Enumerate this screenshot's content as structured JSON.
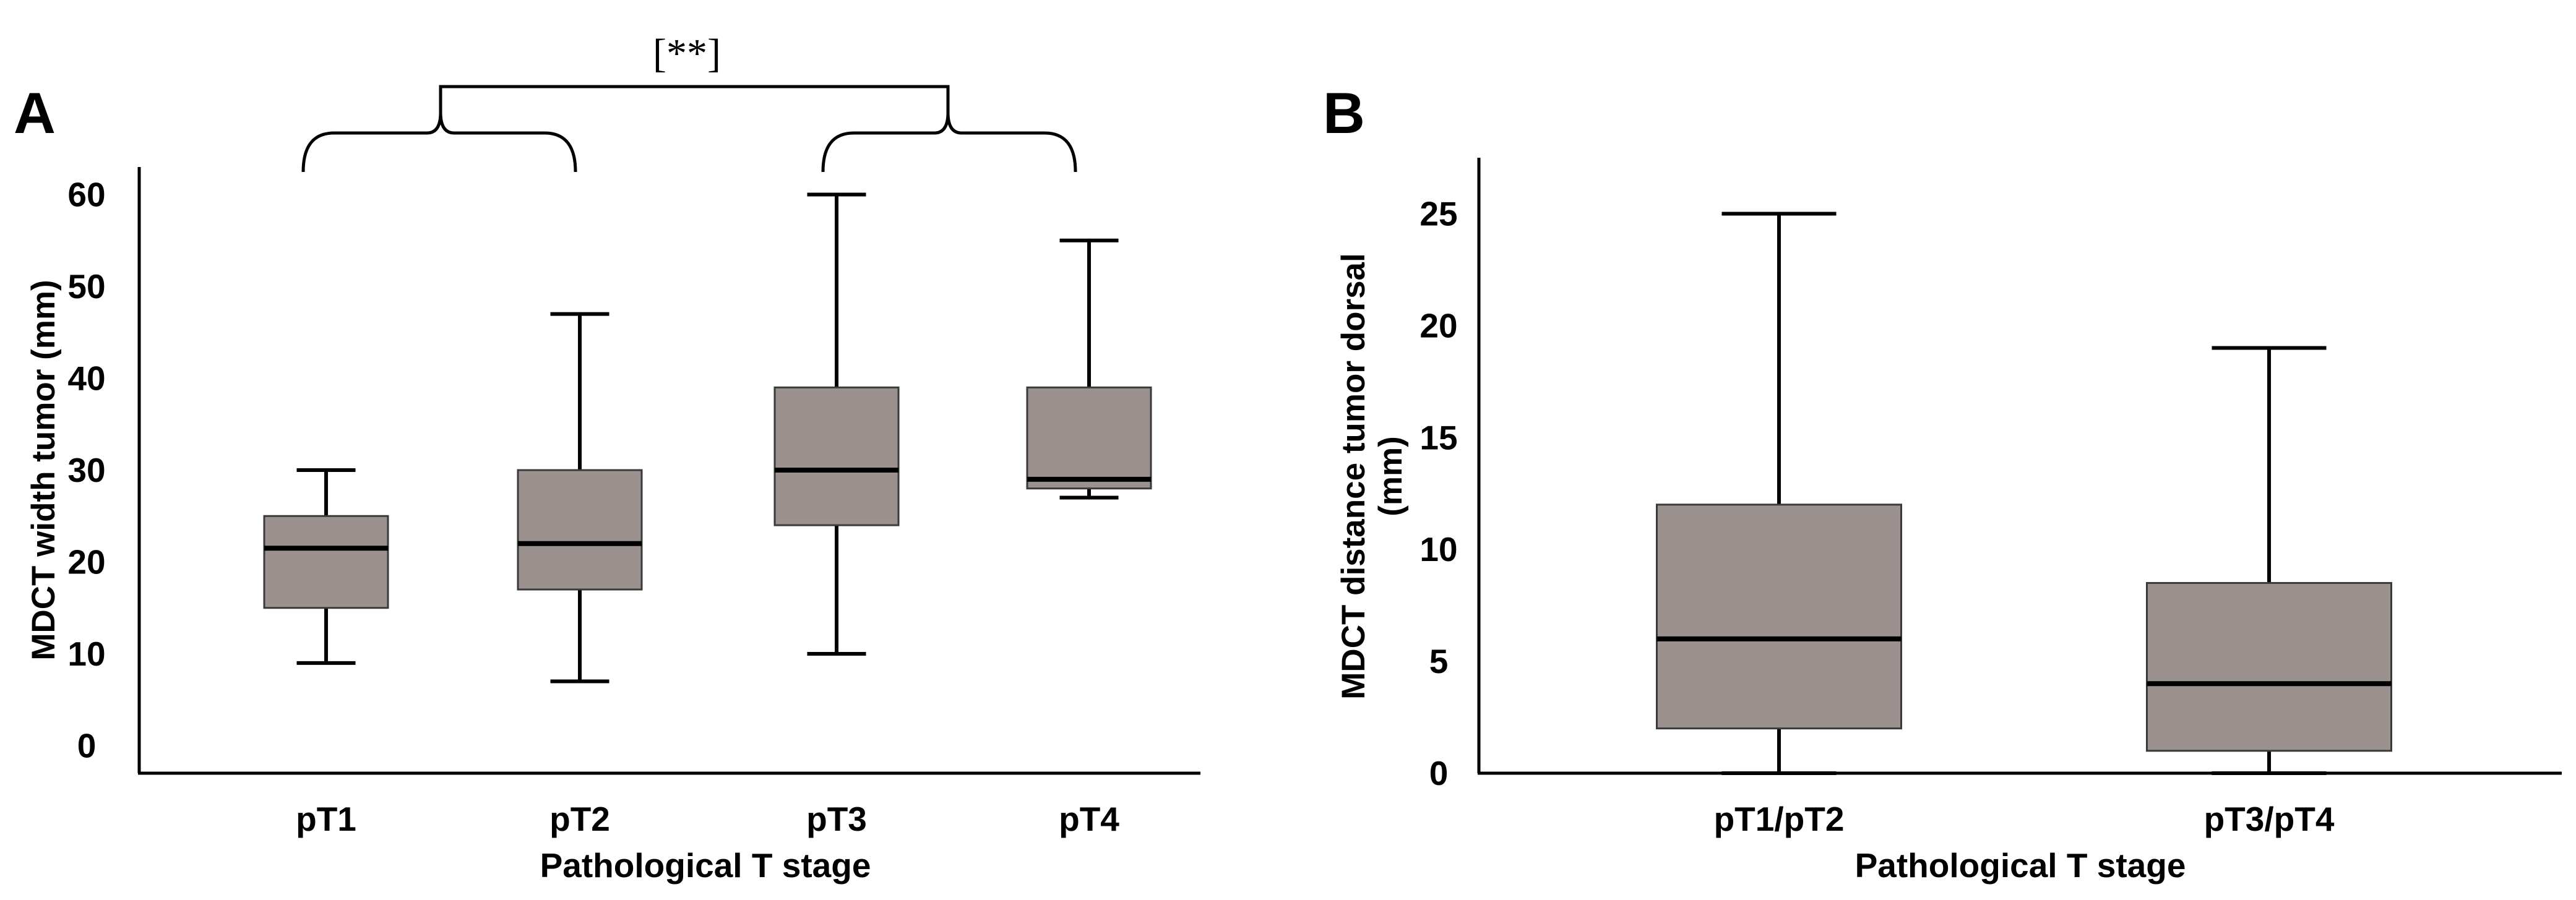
{
  "chart_data": [
    {
      "panel": "A",
      "type": "box",
      "xlabel": "Pathological T stage",
      "ylabel": "MDCT width tumor (mm)",
      "categories": [
        "pT1",
        "pT2",
        "pT3",
        "pT4"
      ],
      "yticks": [
        0,
        10,
        20,
        30,
        40,
        50,
        60
      ],
      "ylim": [
        -3,
        63
      ],
      "boxes": [
        {
          "min": 9,
          "q1": 15,
          "median": 21.5,
          "q3": 25,
          "max": 30
        },
        {
          "min": 7,
          "q1": 17,
          "median": 22,
          "q3": 30,
          "max": 47
        },
        {
          "min": 10,
          "q1": 24,
          "median": 30,
          "q3": 39,
          "max": 60
        },
        {
          "min": 27,
          "q1": 28,
          "median": 29,
          "q3": 39,
          "max": 55
        }
      ],
      "annotation": "[**]"
    },
    {
      "panel": "B",
      "type": "box",
      "xlabel": "Pathological T stage",
      "ylabel": [
        "MDCT distance tumor dorsal",
        "(mm)"
      ],
      "categories": [
        "pT1/pT2",
        "pT3/pT4"
      ],
      "yticks": [
        0,
        5,
        10,
        15,
        20,
        25
      ],
      "ylim": [
        0,
        27.5
      ],
      "boxes": [
        {
          "min": 0,
          "q1": 2,
          "median": 6,
          "q3": 12,
          "max": 25
        },
        {
          "min": 0,
          "q1": 1,
          "median": 4,
          "q3": 8.5,
          "max": 19
        }
      ]
    }
  ]
}
